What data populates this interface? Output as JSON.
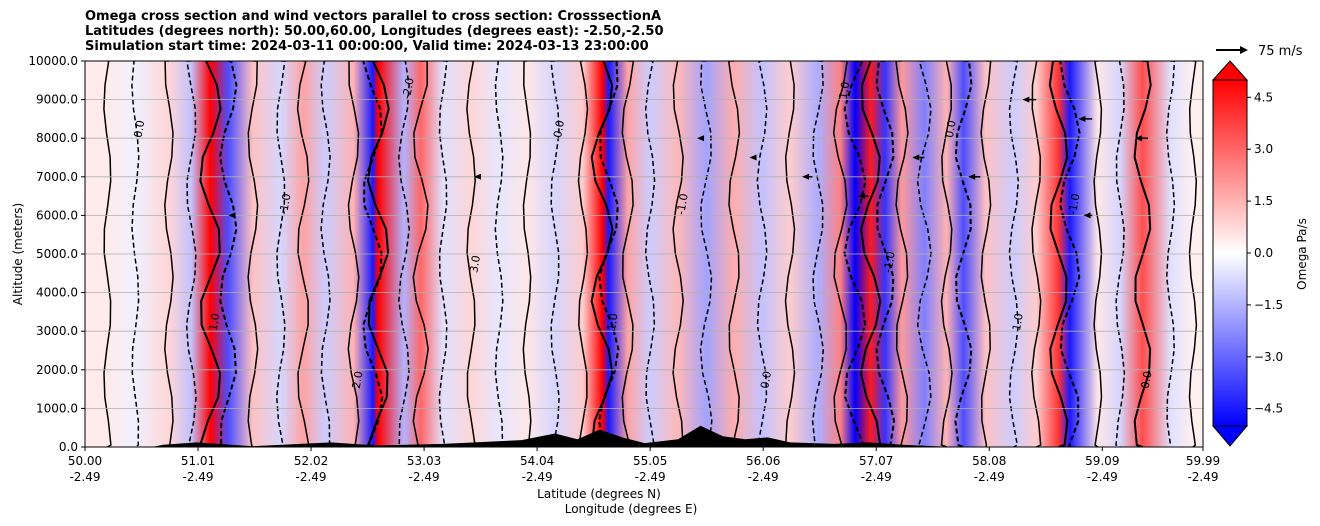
{
  "title_lines": [
    "Omega cross section and wind vectors parallel to cross section: CrosssectionA",
    "Latitudes (degrees north): 50.00,60.00, Longitudes (degrees east): -2.50,-2.50",
    "Simulation start time: 2024-03-11 00:00:00, Valid time: 2024-03-13 23:00:00"
  ],
  "chart_data": {
    "type": "heatmap",
    "xlabel_lines": [
      "Latitude (degrees N)",
      "Longitude (degrees E)"
    ],
    "ylabel": "Altitude (meters)",
    "xlim": [
      50.0,
      59.99
    ],
    "ylim": [
      0,
      10000
    ],
    "x_ticks": [
      {
        "lat": "50.00",
        "lon": "-2.49",
        "value": 50.0
      },
      {
        "lat": "51.01",
        "lon": "-2.49",
        "value": 51.01
      },
      {
        "lat": "52.02",
        "lon": "-2.49",
        "value": 52.02
      },
      {
        "lat": "53.03",
        "lon": "-2.49",
        "value": 53.03
      },
      {
        "lat": "54.04",
        "lon": "-2.49",
        "value": 54.04
      },
      {
        "lat": "55.05",
        "lon": "-2.49",
        "value": 55.05
      },
      {
        "lat": "56.06",
        "lon": "-2.49",
        "value": 56.06
      },
      {
        "lat": "57.07",
        "lon": "-2.49",
        "value": 57.07
      },
      {
        "lat": "58.08",
        "lon": "-2.49",
        "value": 58.08
      },
      {
        "lat": "59.09",
        "lon": "-2.49",
        "value": 59.09
      },
      {
        "lat": "59.99",
        "lon": "-2.49",
        "value": 59.99
      }
    ],
    "y_ticks": [
      {
        "label": "0.0",
        "value": 0
      },
      {
        "label": "1000.0",
        "value": 1000
      },
      {
        "label": "2000.0",
        "value": 2000
      },
      {
        "label": "3000.0",
        "value": 3000
      },
      {
        "label": "4000.0",
        "value": 4000
      },
      {
        "label": "5000.0",
        "value": 5000
      },
      {
        "label": "6000.0",
        "value": 6000
      },
      {
        "label": "7000.0",
        "value": 7000
      },
      {
        "label": "8000.0",
        "value": 8000
      },
      {
        "label": "9000.0",
        "value": 9000
      },
      {
        "label": "10000.0",
        "value": 10000
      }
    ],
    "grid": "horizontal",
    "colorbar": {
      "label": "Omega Pa/s",
      "range": [
        -5.0,
        5.0
      ],
      "extend": "both",
      "ticks": [
        {
          "label": "4.5",
          "value": 4.5
        },
        {
          "label": "3.0",
          "value": 3.0
        },
        {
          "label": "1.5",
          "value": 1.5
        },
        {
          "label": "0.0",
          "value": 0.0
        },
        {
          "label": "−1.5",
          "value": -1.5
        },
        {
          "label": "−3.0",
          "value": -3.0
        },
        {
          "label": "−4.5",
          "value": -4.5
        }
      ]
    },
    "quiver_key": "75 m/s",
    "omega_field": {
      "bands": [
        {
          "lat": 50.2,
          "omega": 0.4
        },
        {
          "lat": 50.45,
          "omega": -0.3
        },
        {
          "lat": 50.75,
          "omega": 0.8
        },
        {
          "lat": 50.95,
          "omega": -1.2
        },
        {
          "lat": 51.12,
          "omega": 5.0
        },
        {
          "lat": 51.28,
          "omega": -3.5
        },
        {
          "lat": 51.5,
          "omega": 1.2
        },
        {
          "lat": 51.75,
          "omega": -0.8
        },
        {
          "lat": 51.95,
          "omega": 1.8
        },
        {
          "lat": 52.15,
          "omega": -1.0
        },
        {
          "lat": 52.4,
          "omega": 1.5
        },
        {
          "lat": 52.57,
          "omega": -4.5
        },
        {
          "lat": 52.62,
          "omega": 5.0
        },
        {
          "lat": 52.85,
          "omega": -1.5
        },
        {
          "lat": 53.0,
          "omega": 3.0
        },
        {
          "lat": 53.2,
          "omega": -0.6
        },
        {
          "lat": 53.45,
          "omega": 0.8
        },
        {
          "lat": 53.7,
          "omega": -0.5
        },
        {
          "lat": 53.95,
          "omega": 0.5
        },
        {
          "lat": 54.2,
          "omega": -0.8
        },
        {
          "lat": 54.45,
          "omega": 1.0
        },
        {
          "lat": 54.62,
          "omega": 5.0
        },
        {
          "lat": 54.68,
          "omega": -4.5
        },
        {
          "lat": 54.85,
          "omega": 1.8
        },
        {
          "lat": 55.05,
          "omega": -1.0
        },
        {
          "lat": 55.3,
          "omega": 1.4
        },
        {
          "lat": 55.55,
          "omega": -1.8
        },
        {
          "lat": 55.8,
          "omega": 1.6
        },
        {
          "lat": 56.05,
          "omega": -1.2
        },
        {
          "lat": 56.3,
          "omega": 1.0
        },
        {
          "lat": 56.55,
          "omega": -1.6
        },
        {
          "lat": 56.75,
          "omega": 2.5
        },
        {
          "lat": 56.88,
          "omega": -5.0
        },
        {
          "lat": 57.02,
          "omega": 4.5
        },
        {
          "lat": 57.15,
          "omega": -4.0
        },
        {
          "lat": 57.3,
          "omega": 2.0
        },
        {
          "lat": 57.5,
          "omega": -2.5
        },
        {
          "lat": 57.7,
          "omega": 1.5
        },
        {
          "lat": 57.85,
          "omega": -3.5
        },
        {
          "lat": 58.05,
          "omega": 1.2
        },
        {
          "lat": 58.3,
          "omega": -1.0
        },
        {
          "lat": 58.5,
          "omega": 1.0
        },
        {
          "lat": 58.7,
          "omega": 4.0
        },
        {
          "lat": 58.8,
          "omega": -4.5
        },
        {
          "lat": 59.05,
          "omega": 0.5
        },
        {
          "lat": 59.25,
          "omega": -0.8
        },
        {
          "lat": 59.45,
          "omega": 3.5
        },
        {
          "lat": 59.7,
          "omega": -0.6
        },
        {
          "lat": 59.9,
          "omega": 0.3
        }
      ]
    },
    "wind_vectors": [
      {
        "lat": 51.3,
        "alt": 6000,
        "u": -6
      },
      {
        "lat": 53.5,
        "alt": 7000,
        "u": -8
      },
      {
        "lat": 55.5,
        "alt": 8000,
        "u": -10
      },
      {
        "lat": 56.0,
        "alt": 7500,
        "u": -20
      },
      {
        "lat": 56.5,
        "alt": 7000,
        "u": -30
      },
      {
        "lat": 57.0,
        "alt": 6500,
        "u": -30
      },
      {
        "lat": 57.5,
        "alt": 7500,
        "u": -35
      },
      {
        "lat": 58.0,
        "alt": 7000,
        "u": -35
      },
      {
        "lat": 58.5,
        "alt": 9000,
        "u": -40
      },
      {
        "lat": 59.0,
        "alt": 8500,
        "u": -40
      },
      {
        "lat": 59.5,
        "alt": 8000,
        "u": -38
      },
      {
        "lat": 59.0,
        "alt": 6000,
        "u": -25
      }
    ],
    "terrain": [
      {
        "lat": 50.0,
        "alt": 0
      },
      {
        "lat": 50.6,
        "alt": 0
      },
      {
        "lat": 50.7,
        "alt": 60
      },
      {
        "lat": 51.0,
        "alt": 120
      },
      {
        "lat": 51.3,
        "alt": 60
      },
      {
        "lat": 51.5,
        "alt": 20
      },
      {
        "lat": 52.2,
        "alt": 120
      },
      {
        "lat": 52.6,
        "alt": 40
      },
      {
        "lat": 53.2,
        "alt": 80
      },
      {
        "lat": 53.9,
        "alt": 180
      },
      {
        "lat": 54.2,
        "alt": 350
      },
      {
        "lat": 54.4,
        "alt": 200
      },
      {
        "lat": 54.6,
        "alt": 450
      },
      {
        "lat": 54.8,
        "alt": 250
      },
      {
        "lat": 55.0,
        "alt": 100
      },
      {
        "lat": 55.3,
        "alt": 200
      },
      {
        "lat": 55.5,
        "alt": 550
      },
      {
        "lat": 55.7,
        "alt": 280
      },
      {
        "lat": 55.9,
        "alt": 200
      },
      {
        "lat": 56.1,
        "alt": 250
      },
      {
        "lat": 56.3,
        "alt": 120
      },
      {
        "lat": 56.7,
        "alt": 80
      },
      {
        "lat": 57.0,
        "alt": 120
      },
      {
        "lat": 57.3,
        "alt": 60
      },
      {
        "lat": 57.6,
        "alt": 20
      },
      {
        "lat": 57.8,
        "alt": 0
      },
      {
        "lat": 59.99,
        "alt": 0
      }
    ],
    "contour_labels": [
      "0.0",
      "1.0",
      "-1.0",
      "2.0",
      "-2.0",
      "3.0",
      "0.0",
      "1.0",
      "-1.0",
      "0.0",
      "1.0",
      "-1.0",
      "0.0",
      "1.0",
      "-1.0",
      "0.0"
    ]
  }
}
